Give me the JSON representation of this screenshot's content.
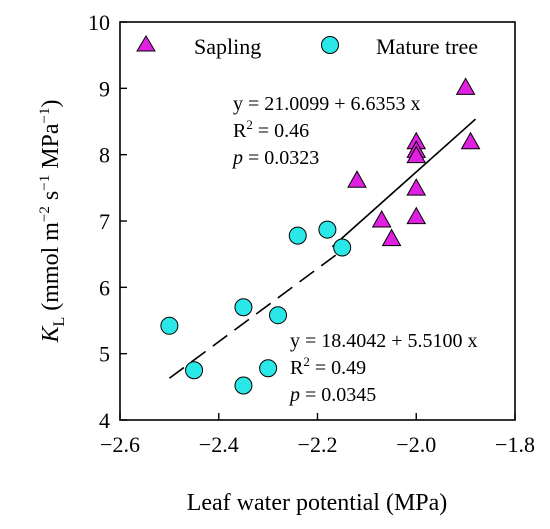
{
  "chart_data": {
    "type": "scatter",
    "xlabel": "Leaf water potential (MPa)",
    "ylabel": {
      "prefix": "K",
      "sub": "L",
      "unit_open": " (mmol m",
      "exp1": "−2",
      "unit_mid1": " s",
      "exp2": "−1",
      "unit_mid2": " MPa",
      "exp3": "−1",
      "unit_close": ")"
    },
    "xlim": [
      -2.6,
      -1.8
    ],
    "ylim": [
      4,
      10
    ],
    "x_ticks": [
      -2.6,
      -2.4,
      -2.2,
      -2.0,
      -1.8
    ],
    "x_tick_labels": [
      "−2.6",
      "−2.4",
      "−2.2",
      "−2.0",
      "−1.8"
    ],
    "y_ticks": [
      4,
      5,
      6,
      7,
      8,
      9,
      10
    ],
    "y_tick_labels": [
      "4",
      "5",
      "6",
      "7",
      "8",
      "9",
      "10"
    ],
    "grid": false,
    "legend_position": "top",
    "series": [
      {
        "name": "Sapling",
        "marker": "triangle",
        "color": "#e020e0",
        "points": [
          {
            "x": -1.9,
            "y": 9.0
          },
          {
            "x": -1.89,
            "y": 8.18
          },
          {
            "x": -2.0,
            "y": 8.18
          },
          {
            "x": -2.0,
            "y": 8.05
          },
          {
            "x": -2.0,
            "y": 7.97
          },
          {
            "x": -2.12,
            "y": 7.6
          },
          {
            "x": -2.0,
            "y": 7.48
          },
          {
            "x": -2.0,
            "y": 7.05
          },
          {
            "x": -2.07,
            "y": 7.0
          },
          {
            "x": -2.05,
            "y": 6.72
          }
        ],
        "fit": {
          "x_range": [
            -2.17,
            -1.88
          ],
          "line_style": "solid",
          "equation": "y = 21.0099 + 6.6353 x",
          "r2_label": "R",
          "r2_sup": "2",
          "r2_value": " = 0.46",
          "p_label": "p",
          "p_value": " = 0.0323"
        }
      },
      {
        "name": "Mature tree",
        "marker": "circle",
        "color": "#2be8e8",
        "points": [
          {
            "x": -2.18,
            "y": 6.87
          },
          {
            "x": -2.24,
            "y": 6.78
          },
          {
            "x": -2.15,
            "y": 6.6
          },
          {
            "x": -2.35,
            "y": 5.7
          },
          {
            "x": -2.28,
            "y": 5.58
          },
          {
            "x": -2.5,
            "y": 5.42
          },
          {
            "x": -2.45,
            "y": 4.75
          },
          {
            "x": -2.3,
            "y": 4.78
          },
          {
            "x": -2.35,
            "y": 4.52
          }
        ],
        "fit": {
          "x_range": [
            -2.5,
            -2.16
          ],
          "line_style": "dashed",
          "equation": "y = 18.4042 + 5.5100 x",
          "r2_label": "R",
          "r2_sup": "2",
          "r2_value": " = 0.49",
          "p_label": "p",
          "p_value": " = 0.0345"
        }
      }
    ]
  }
}
